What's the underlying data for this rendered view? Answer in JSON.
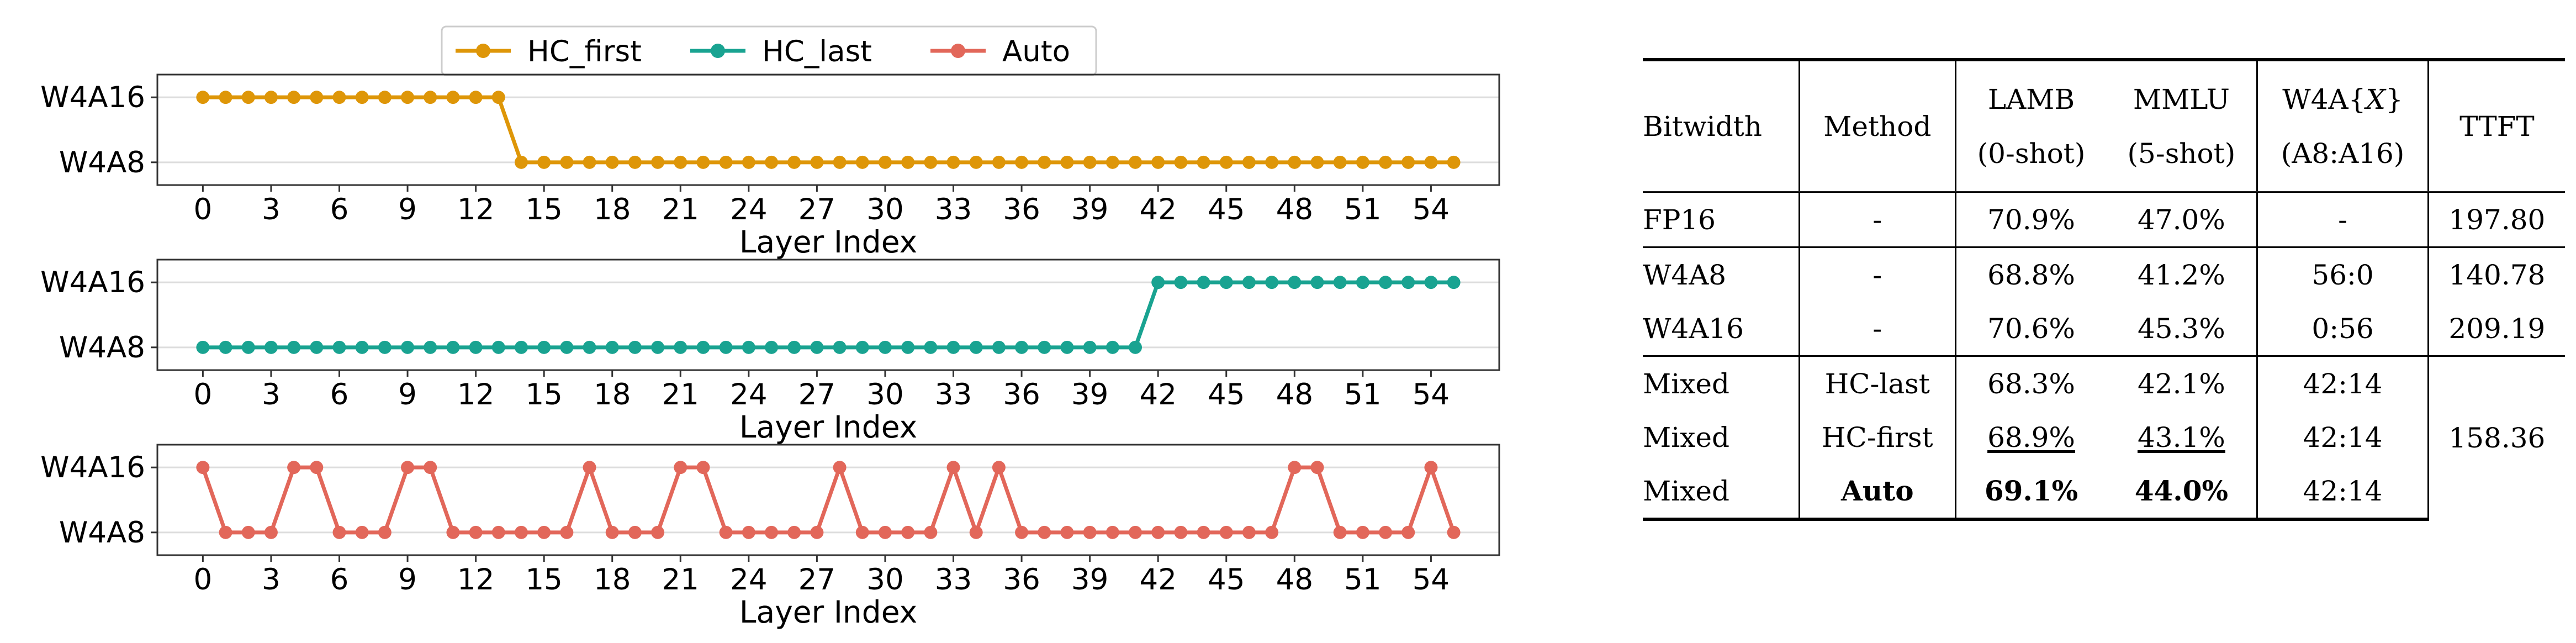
{
  "chart_data": {
    "type": "line",
    "x": [
      0,
      1,
      2,
      3,
      4,
      5,
      6,
      7,
      8,
      9,
      10,
      11,
      12,
      13,
      14,
      15,
      16,
      17,
      18,
      19,
      20,
      21,
      22,
      23,
      24,
      25,
      26,
      27,
      28,
      29,
      30,
      31,
      32,
      33,
      34,
      35,
      36,
      37,
      38,
      39,
      40,
      41,
      42,
      43,
      44,
      45,
      46,
      47,
      48,
      49,
      50,
      51,
      52,
      53,
      54,
      55
    ],
    "xticks": [
      "0",
      "3",
      "6",
      "9",
      "12",
      "15",
      "18",
      "21",
      "24",
      "27",
      "30",
      "33",
      "36",
      "39",
      "42",
      "45",
      "48",
      "51",
      "54"
    ],
    "xtick_values": [
      0,
      3,
      6,
      9,
      12,
      15,
      18,
      21,
      24,
      27,
      30,
      33,
      36,
      39,
      42,
      45,
      48,
      51,
      54
    ],
    "xlabel": "Layer Index",
    "yticks": [
      "W4A8",
      "W4A16"
    ],
    "ylim": [
      -0.35,
      1.35
    ],
    "xlim": [
      -2,
      57
    ],
    "grid": "horizontal",
    "legend_placement": "top",
    "series": [
      {
        "name": "HC_first",
        "color": "#de9608",
        "values": [
          1,
          1,
          1,
          1,
          1,
          1,
          1,
          1,
          1,
          1,
          1,
          1,
          1,
          1,
          0,
          0,
          0,
          0,
          0,
          0,
          0,
          0,
          0,
          0,
          0,
          0,
          0,
          0,
          0,
          0,
          0,
          0,
          0,
          0,
          0,
          0,
          0,
          0,
          0,
          0,
          0,
          0,
          0,
          0,
          0,
          0,
          0,
          0,
          0,
          0,
          0,
          0,
          0,
          0,
          0,
          0
        ]
      },
      {
        "name": "HC_last",
        "color": "#19a391",
        "values": [
          0,
          0,
          0,
          0,
          0,
          0,
          0,
          0,
          0,
          0,
          0,
          0,
          0,
          0,
          0,
          0,
          0,
          0,
          0,
          0,
          0,
          0,
          0,
          0,
          0,
          0,
          0,
          0,
          0,
          0,
          0,
          0,
          0,
          0,
          0,
          0,
          0,
          0,
          0,
          0,
          0,
          0,
          1,
          1,
          1,
          1,
          1,
          1,
          1,
          1,
          1,
          1,
          1,
          1,
          1,
          1
        ]
      },
      {
        "name": "Auto",
        "color": "#e2675a",
        "values": [
          1,
          0,
          0,
          0,
          1,
          1,
          0,
          0,
          0,
          1,
          1,
          0,
          0,
          0,
          0,
          0,
          0,
          1,
          0,
          0,
          0,
          1,
          1,
          0,
          0,
          0,
          0,
          0,
          1,
          0,
          0,
          0,
          0,
          1,
          0,
          1,
          0,
          0,
          0,
          0,
          0,
          0,
          0,
          0,
          0,
          0,
          0,
          0,
          1,
          1,
          0,
          0,
          0,
          0,
          1,
          0
        ]
      }
    ]
  },
  "table": {
    "headers": [
      {
        "line1": "Bitwidth",
        "line2": ""
      },
      {
        "line1": "Method",
        "line2": ""
      },
      {
        "line1": "LAMB",
        "line2": "(0-shot)"
      },
      {
        "line1": "MMLU",
        "line2": "(5-shot)"
      },
      {
        "line1_pre": "W4A{",
        "line1_var": "X",
        "line1_post": "}",
        "line2": "(A8:A16)"
      },
      {
        "line1": "TTFT",
        "line2": ""
      }
    ],
    "rows": {
      "fp16": [
        "FP16",
        "-",
        "70.9%",
        "47.0%",
        "-",
        "197.80"
      ],
      "w4a8": [
        "W4A8",
        "-",
        "68.8%",
        "41.2%",
        "56:0",
        "140.78"
      ],
      "w4a16": [
        "W4A16",
        "-",
        "70.6%",
        "45.3%",
        "0:56",
        "209.19"
      ],
      "mixed_hclast": [
        "Mixed",
        "HC-last",
        "68.3%",
        "42.1%",
        "42:14"
      ],
      "mixed_hcfirst": [
        "Mixed",
        "HC-first",
        "68.9%",
        "43.1%",
        "42:14"
      ],
      "mixed_auto": [
        "Mixed",
        "Auto",
        "69.1%",
        "44.0%",
        "42:14"
      ],
      "mixed_ttft": "158.36"
    }
  }
}
